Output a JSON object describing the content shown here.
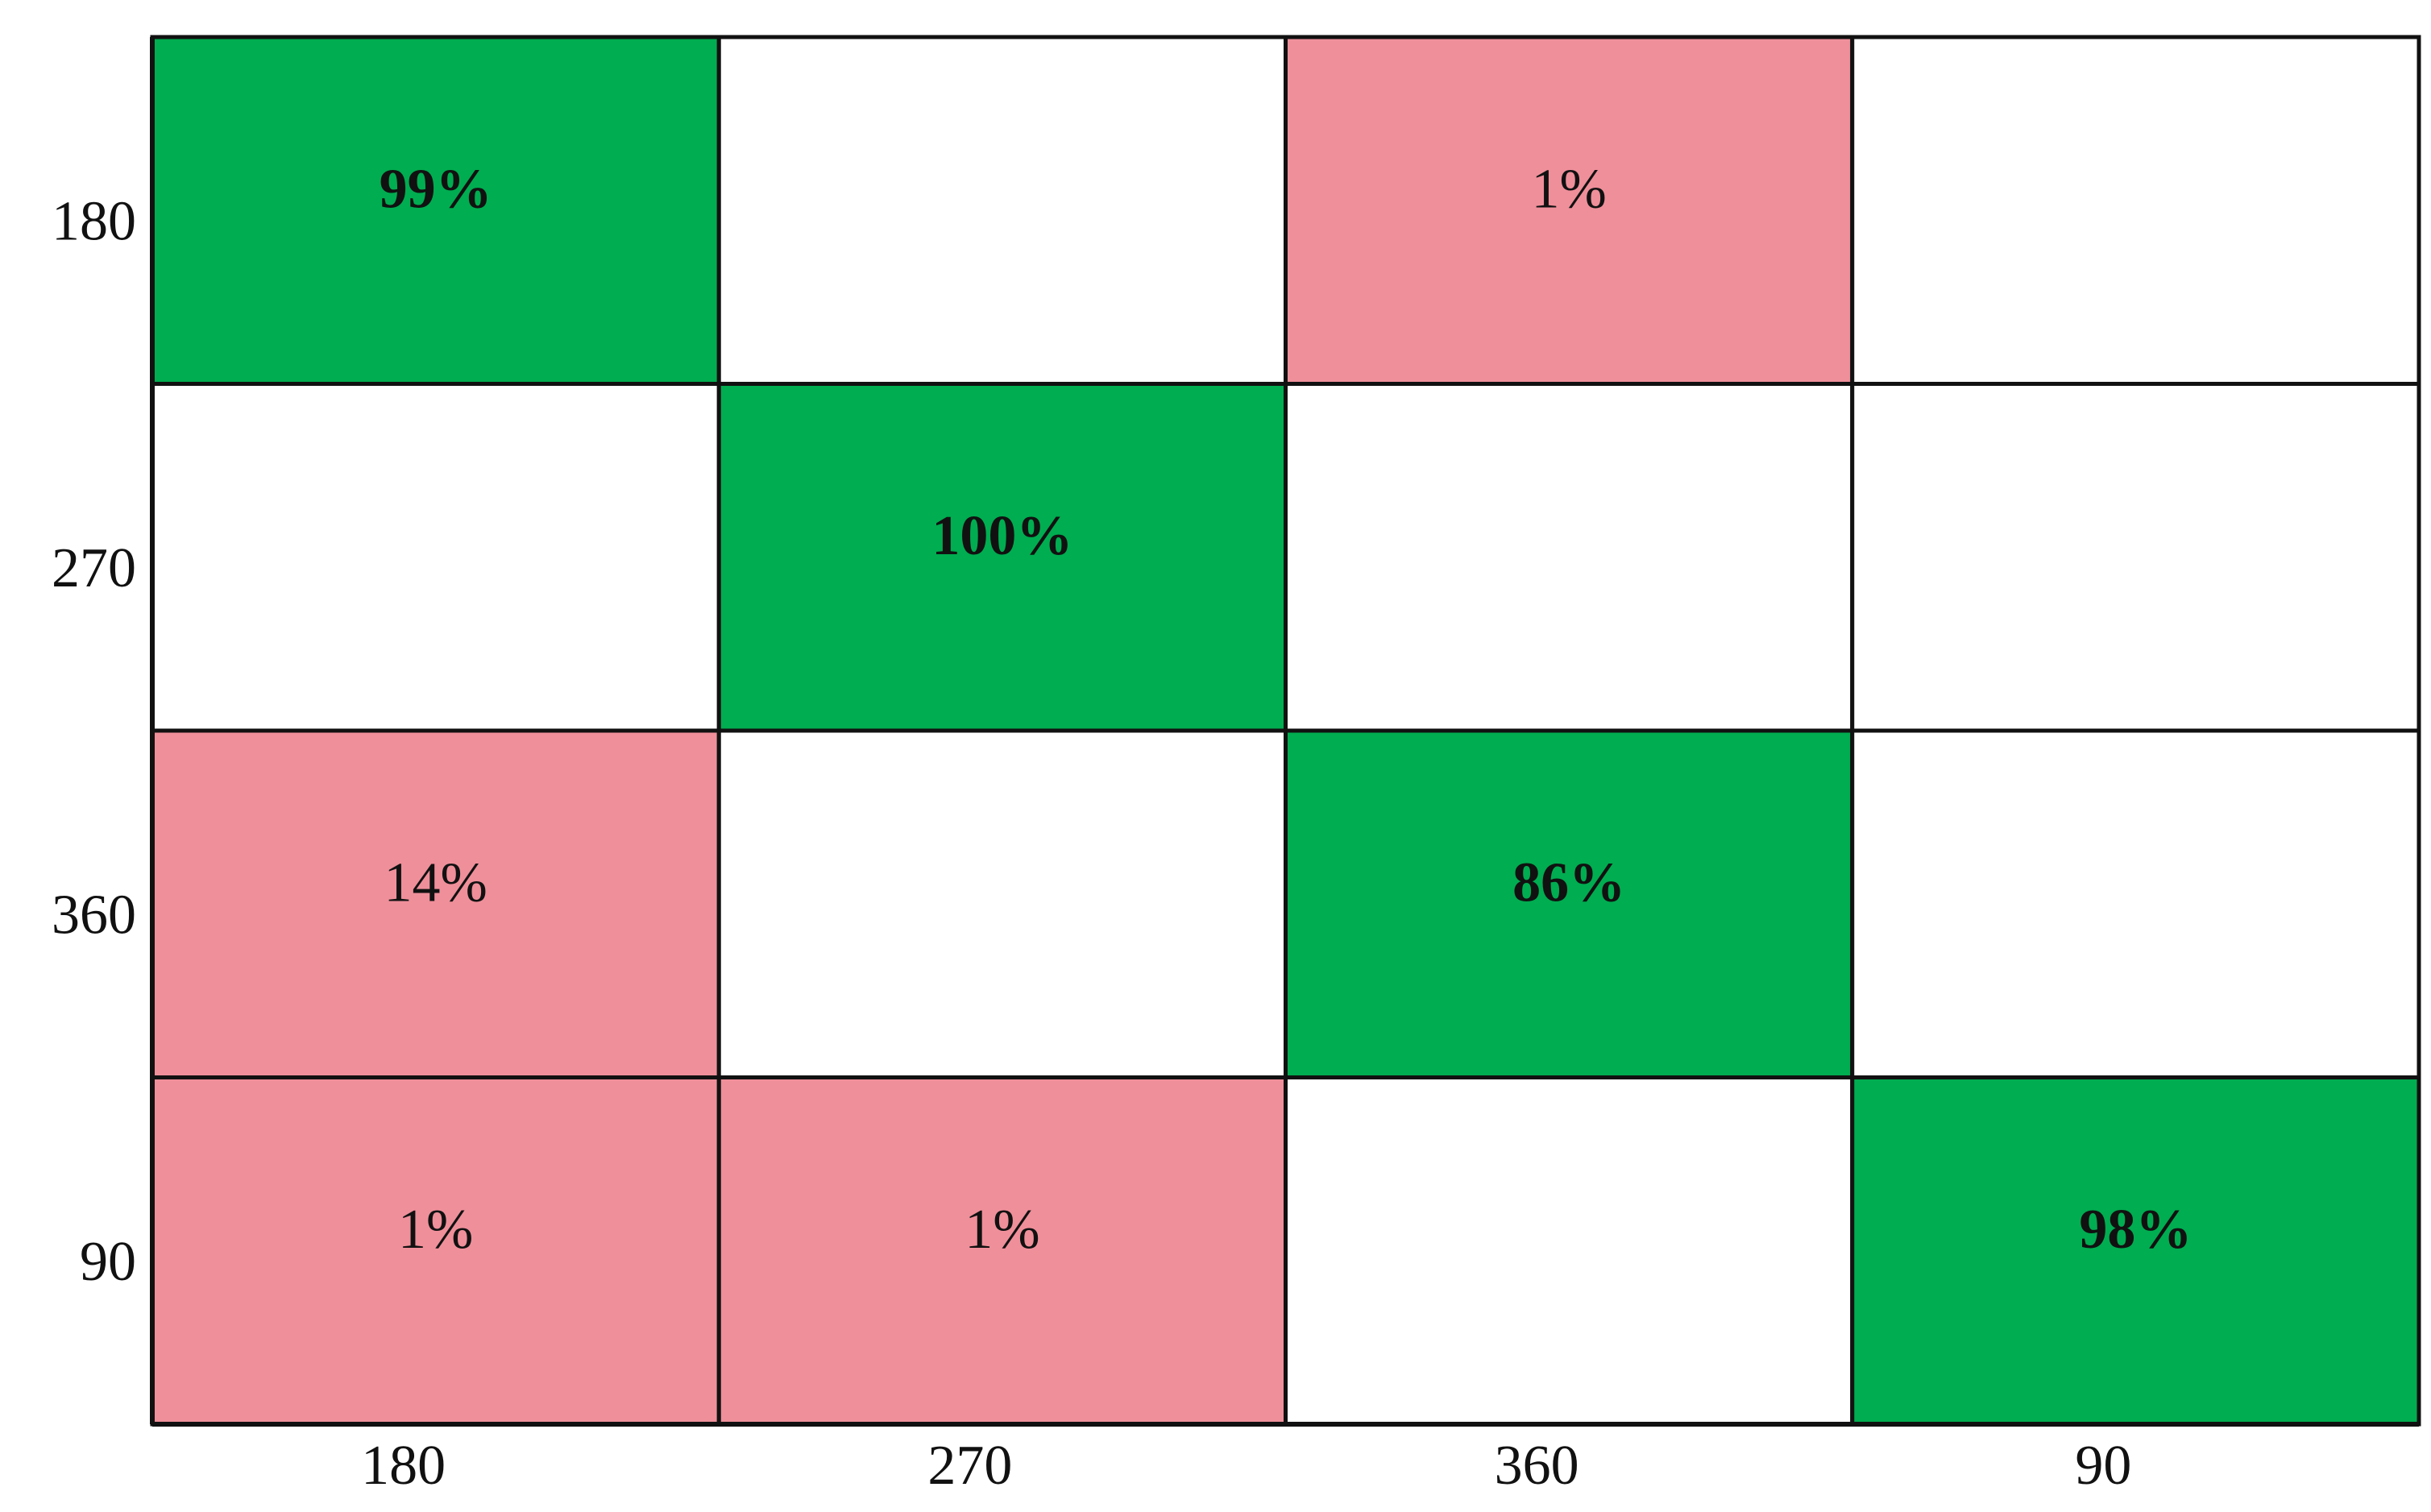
{
  "chart_data": {
    "type": "heatmap",
    "x_categories": [
      "180",
      "270",
      "360",
      "90"
    ],
    "y_categories": [
      "180",
      "270",
      "360",
      "90"
    ],
    "values": [
      [
        99,
        null,
        1,
        null
      ],
      [
        null,
        100,
        null,
        null
      ],
      [
        14,
        null,
        86,
        null
      ],
      [
        1,
        1,
        null,
        98
      ]
    ],
    "value_labels": [
      [
        "99%",
        null,
        "1%",
        null
      ],
      [
        null,
        "100%",
        null,
        null
      ],
      [
        "14%",
        null,
        "86%",
        null
      ],
      [
        "1%",
        "1%",
        null,
        "98%"
      ]
    ],
    "diagonal_color": "#00ad50",
    "off_diagonal_color": "#ef8f9a"
  }
}
